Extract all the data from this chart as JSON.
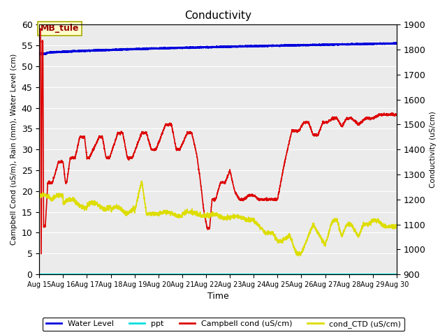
{
  "title": "Conductivity",
  "xlabel": "Time",
  "ylabel_left": "Campbell Cond (uS/m), Rain (mm), Water Level (cm)",
  "ylabel_right": "Conductivity (uS/cm)",
  "ylim_left": [
    0,
    60
  ],
  "ylim_right": [
    900,
    1900
  ],
  "xlim_days": [
    15,
    30
  ],
  "bg_color": "#ebebeb",
  "annotation_text": "MB_tule",
  "water_level_color": "#0000dd",
  "ppt_color": "#00dddd",
  "campbell_color": "#dd0000",
  "ctd_color": "#dddd00",
  "legend_labels": [
    "Water Level",
    "ppt",
    "Campbell cond (uS/cm)",
    "cond_CTD (uS/cm)"
  ],
  "grid_color": "#ffffff",
  "xtick_labels": [
    "Aug 15",
    "Aug 16",
    "Aug 17",
    "Aug 18",
    "Aug 19",
    "Aug 20",
    "Aug 21",
    "Aug 22",
    "Aug 23",
    "Aug 24",
    "Aug 25",
    "Aug 26",
    "Aug 27",
    "Aug 28",
    "Aug 29",
    "Aug 30"
  ],
  "yticks_left": [
    0,
    5,
    10,
    15,
    20,
    25,
    30,
    35,
    40,
    45,
    50,
    55,
    60
  ],
  "yticks_right": [
    900,
    1000,
    1100,
    1200,
    1300,
    1400,
    1500,
    1600,
    1700,
    1800,
    1900
  ]
}
